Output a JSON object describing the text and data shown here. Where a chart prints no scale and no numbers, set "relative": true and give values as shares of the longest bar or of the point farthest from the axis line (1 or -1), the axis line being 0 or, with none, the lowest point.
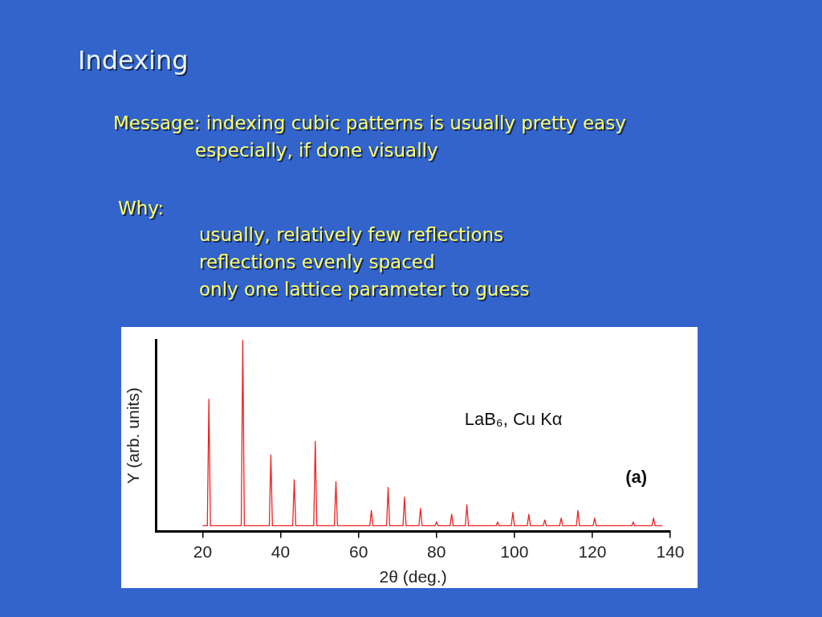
{
  "chart_data": {
    "type": "line",
    "title": "Indexing",
    "annotations": [
      "Message:  indexing cubic patterns is usually pretty easy",
      "especially, if done visually",
      "Why:",
      "usually, relatively few reflections",
      "reflections evenly spaced",
      "only one lattice parameter to guess",
      "LaB₆, Cu Kα",
      "(a)"
    ],
    "xlabel": "2θ (deg.)",
    "ylabel": "Y (arb. units)",
    "relative": true,
    "x": [
      20,
      21.2,
      21.6,
      22,
      29.9,
      30.3,
      30.7,
      37.1,
      37.5,
      37.9,
      43.1,
      43.5,
      43.9,
      48.5,
      48.9,
      49.3,
      53.8,
      54.2,
      54.6,
      62.9,
      63.3,
      63.7,
      67.2,
      67.6,
      68,
      71.4,
      71.8,
      72.2,
      75.5,
      75.9,
      76.3,
      79.6,
      80,
      80.4,
      83.5,
      83.9,
      84.3,
      87.4,
      87.8,
      88.2,
      95.3,
      95.7,
      96.1,
      99.2,
      99.6,
      100,
      103.3,
      103.7,
      104.1,
      107.4,
      107.8,
      108.2,
      111.6,
      112,
      112.4,
      115.9,
      116.3,
      116.7,
      120.2,
      120.6,
      121,
      130.1,
      130.5,
      130.9,
      135.3,
      135.7,
      136.1,
      138
    ],
    "series": [
      {
        "color": "#ee2222",
        "values": [
          0.03,
          0.03,
          0.69,
          0.03,
          0.03,
          1,
          0.03,
          0.03,
          0.4,
          0.03,
          0.03,
          0.27,
          0.03,
          0.03,
          0.47,
          0.03,
          0.03,
          0.26,
          0.03,
          0.03,
          0.11,
          0.03,
          0.03,
          0.23,
          0.03,
          0.03,
          0.18,
          0.03,
          0.03,
          0.12,
          0.03,
          0.03,
          0.05,
          0.03,
          0.03,
          0.09,
          0.03,
          0.03,
          0.14,
          0.03,
          0.03,
          0.05,
          0.03,
          0.03,
          0.1,
          0.03,
          0.03,
          0.09,
          0.03,
          0.03,
          0.06,
          0.03,
          0.03,
          0.07,
          0.03,
          0.03,
          0.11,
          0.03,
          0.03,
          0.07,
          0.03,
          0.03,
          0.05,
          0.03,
          0.03,
          0.07,
          0.03,
          0.03
        ]
      }
    ],
    "xlim": [
      8,
      140
    ],
    "xticks": [
      20,
      40,
      60,
      80,
      100,
      120,
      140
    ],
    "legend": false,
    "grid": false,
    "marker": "none"
  }
}
